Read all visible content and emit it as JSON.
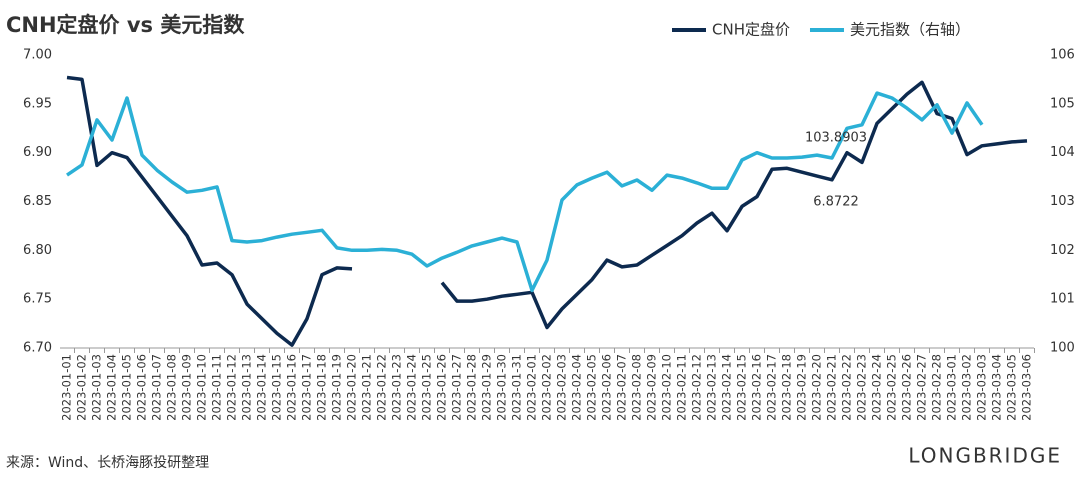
{
  "chart_data": {
    "type": "line",
    "title": "CNH定盘价 vs 美元指数",
    "source": "来源：Wind、长桥海豚投研整理",
    "watermark": "LONGBRIDGE",
    "categories": [
      "2023-01-01",
      "2023-01-02",
      "2023-01-03",
      "2023-01-04",
      "2023-01-05",
      "2023-01-06",
      "2023-01-07",
      "2023-01-08",
      "2023-01-09",
      "2023-01-10",
      "2023-01-11",
      "2023-01-12",
      "2023-01-13",
      "2023-01-14",
      "2023-01-15",
      "2023-01-16",
      "2023-01-17",
      "2023-01-18",
      "2023-01-19",
      "2023-01-20",
      "2023-01-21",
      "2023-01-22",
      "2023-01-23",
      "2023-01-24",
      "2023-01-25",
      "2023-01-26",
      "2023-01-27",
      "2023-01-28",
      "2023-01-29",
      "2023-01-30",
      "2023-01-31",
      "2023-02-01",
      "2023-02-02",
      "2023-02-03",
      "2023-02-04",
      "2023-02-05",
      "2023-02-06",
      "2023-02-07",
      "2023-02-08",
      "2023-02-09",
      "2023-02-10",
      "2023-02-11",
      "2023-02-12",
      "2023-02-13",
      "2023-02-14",
      "2023-02-15",
      "2023-02-16",
      "2023-02-17",
      "2023-02-18",
      "2023-02-19",
      "2023-02-20",
      "2023-02-21",
      "2023-02-22",
      "2023-02-23",
      "2023-02-24",
      "2023-02-25",
      "2023-02-26",
      "2023-02-27",
      "2023-02-28",
      "2023-03-01",
      "2023-03-02",
      "2023-03-03",
      "2023-03-04",
      "2023-03-05",
      "2023-03-06"
    ],
    "series": [
      {
        "name": "CNH定盘价",
        "color": "#0d2a4f",
        "labeled_points": [
          51
        ],
        "values": [
          6.977,
          6.975,
          6.887,
          6.9,
          6.895,
          6.875,
          6.855,
          6.835,
          6.815,
          6.785,
          6.787,
          6.775,
          6.745,
          6.73,
          6.715,
          6.703,
          6.73,
          6.775,
          6.782,
          6.781,
          null,
          null,
          null,
          null,
          null,
          6.767,
          6.748,
          6.748,
          6.75,
          6.753,
          6.755,
          6.757,
          6.721,
          6.74,
          6.755,
          6.77,
          6.79,
          6.783,
          6.785,
          6.795,
          6.805,
          6.815,
          6.828,
          6.838,
          6.82,
          6.845,
          6.855,
          6.883,
          6.884,
          6.88,
          6.876,
          6.8722,
          6.9,
          6.89,
          6.93,
          6.945,
          6.96,
          6.972,
          6.94,
          6.935,
          6.898,
          6.907,
          6.909,
          6.911,
          6.912
        ]
      },
      {
        "name": "美元指数（右轴）",
        "color": "#2bb0d6",
        "axis": "y2",
        "labeled_points": [
          51
        ],
        "values": [
          103.54,
          103.75,
          104.67,
          104.26,
          105.12,
          103.95,
          103.64,
          103.4,
          103.19,
          103.23,
          103.3,
          102.2,
          102.17,
          102.2,
          102.27,
          102.33,
          102.37,
          102.41,
          102.05,
          102.0,
          102.0,
          102.02,
          102.0,
          101.92,
          101.68,
          101.84,
          101.96,
          102.09,
          102.17,
          102.25,
          102.17,
          101.18,
          101.8,
          103.03,
          103.34,
          103.48,
          103.6,
          103.32,
          103.44,
          103.23,
          103.54,
          103.48,
          103.38,
          103.27,
          103.27,
          103.85,
          104.0,
          103.89,
          103.89,
          103.91,
          103.95,
          103.8903,
          104.5,
          104.57,
          105.22,
          105.12,
          104.91,
          104.67,
          104.98,
          104.4,
          105.02,
          104.57,
          null,
          null,
          null
        ]
      }
    ],
    "ylim": [
      6.7,
      7.0
    ],
    "yticks": [
      {
        "value": 6.7,
        "label": "6.70"
      },
      6.75,
      {
        "value": 6.8,
        "label": "6.80"
      },
      6.85,
      {
        "value": 6.9,
        "label": "6.90"
      },
      6.95,
      {
        "value": 7.0,
        "label": "7.00"
      }
    ],
    "y2lim": [
      100,
      106
    ],
    "y2ticks": [
      100,
      101,
      102,
      103,
      104,
      105,
      106
    ]
  }
}
